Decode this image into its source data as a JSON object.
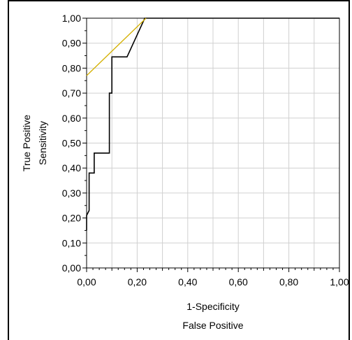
{
  "chart_data": {
    "type": "line",
    "xlabel": [
      "1-Specificity",
      "False Positive"
    ],
    "ylabel": [
      "True Positive",
      "Sensitivity"
    ],
    "xlim": [
      0,
      1
    ],
    "ylim": [
      0,
      1
    ],
    "x_ticks": [
      "0,00",
      "0,20",
      "0,40",
      "0,60",
      "0,80",
      "1,00"
    ],
    "y_ticks": [
      "0,00",
      "0,10",
      "0,20",
      "0,30",
      "0,40",
      "0,50",
      "0,60",
      "0,70",
      "0,80",
      "0,90",
      "1,00"
    ],
    "grid": true,
    "series": [
      {
        "color": "#000000",
        "x": [
          0.0,
          0.0,
          0.01,
          0.01,
          0.02,
          0.02,
          0.03,
          0.03,
          0.08,
          0.08,
          0.09,
          0.09,
          0.1,
          0.1,
          0.16,
          0.16,
          0.23,
          0.23,
          1.0
        ],
        "y": [
          0.15,
          0.21,
          0.23,
          0.38,
          0.38,
          0.38,
          0.38,
          0.46,
          0.46,
          0.46,
          0.46,
          0.7,
          0.7,
          0.845,
          0.845,
          0.845,
          1.0,
          1.0,
          1.0
        ]
      },
      {
        "color": "#d4b000",
        "x": [
          0.0,
          0.235
        ],
        "y": [
          0.77,
          1.0
        ]
      }
    ]
  }
}
